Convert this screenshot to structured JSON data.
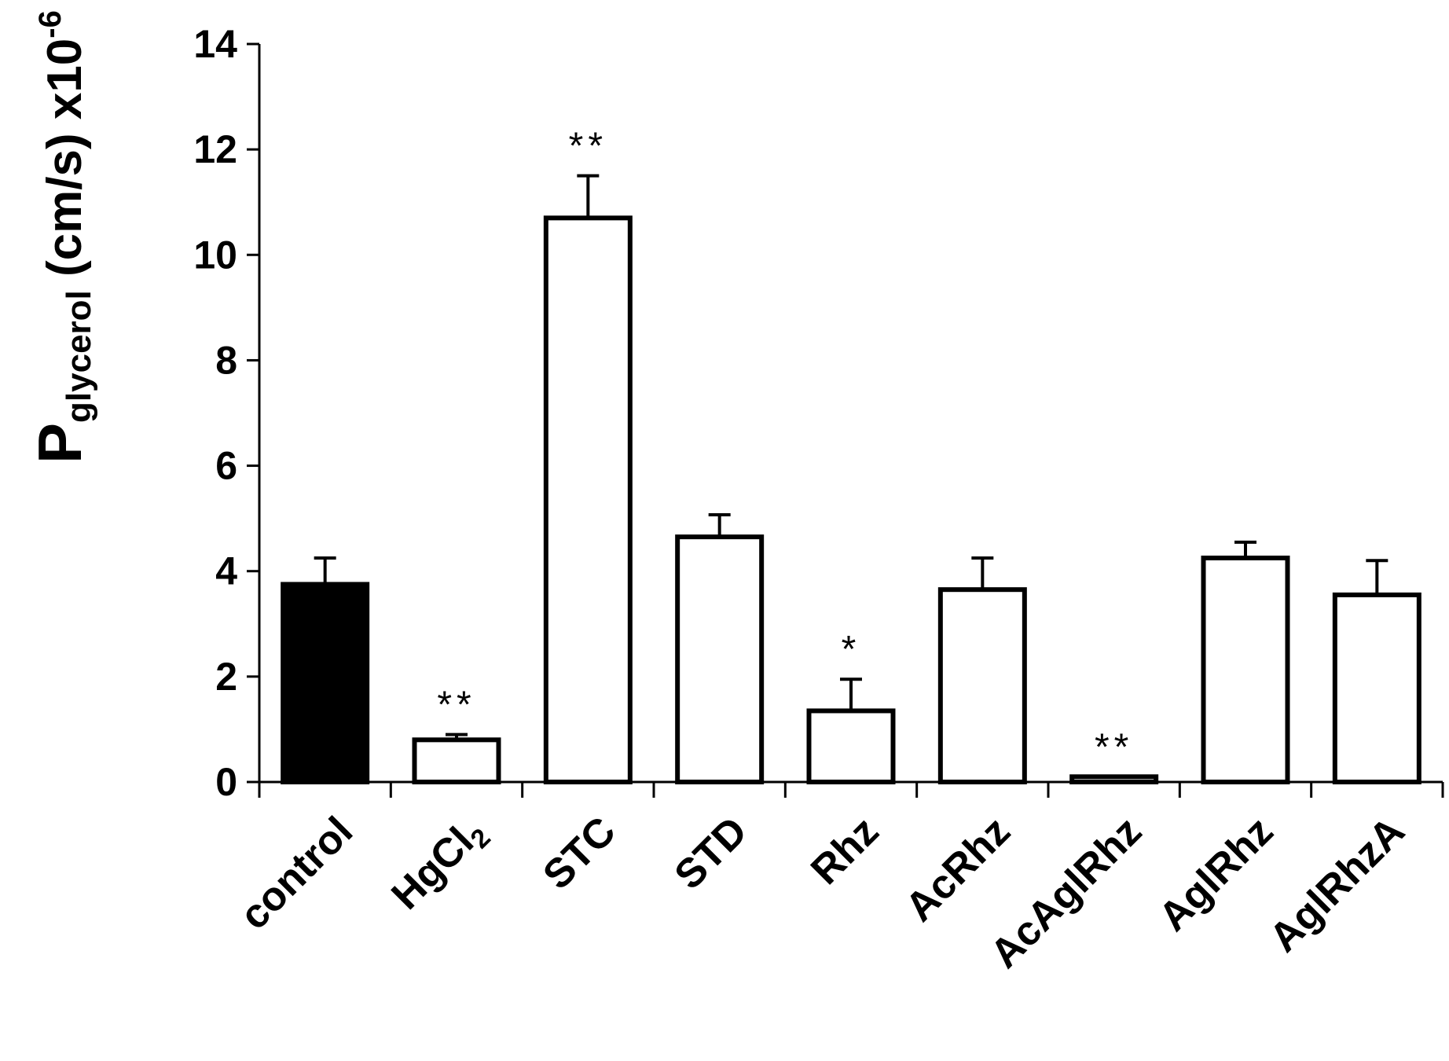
{
  "chart_data": {
    "type": "bar",
    "title": "",
    "xlabel": "",
    "ylabel": {
      "main": "P",
      "subscript": "glycerol",
      "rest": " (cm/s) x10",
      "superscript": "-6"
    },
    "ylim": [
      0,
      14
    ],
    "yticks": [
      0,
      2,
      4,
      6,
      8,
      10,
      12,
      14
    ],
    "grid": false,
    "legend": "none",
    "categories": [
      {
        "label": "control",
        "sub": ""
      },
      {
        "label": "HgCl",
        "sub": "2"
      },
      {
        "label": "STC",
        "sub": ""
      },
      {
        "label": "STD",
        "sub": ""
      },
      {
        "label": "Rhz",
        "sub": ""
      },
      {
        "label": "AcRhz",
        "sub": ""
      },
      {
        "label": "AcAglRhz",
        "sub": ""
      },
      {
        "label": "AglRhz",
        "sub": ""
      },
      {
        "label": "AglRhzA",
        "sub": ""
      }
    ],
    "values": [
      3.75,
      0.8,
      10.7,
      4.65,
      1.35,
      3.65,
      0.1,
      4.25,
      3.55
    ],
    "errors": [
      0.5,
      0.1,
      0.8,
      0.42,
      0.6,
      0.6,
      0.0,
      0.3,
      0.65
    ],
    "significance": [
      "",
      "**",
      "**",
      "",
      "*",
      "",
      "**",
      "",
      ""
    ],
    "fill_colors": [
      "#000000",
      "#ffffff",
      "#ffffff",
      "#ffffff",
      "#ffffff",
      "#ffffff",
      "#ffffff",
      "#ffffff",
      "#ffffff"
    ],
    "stroke_color": "#000000"
  }
}
